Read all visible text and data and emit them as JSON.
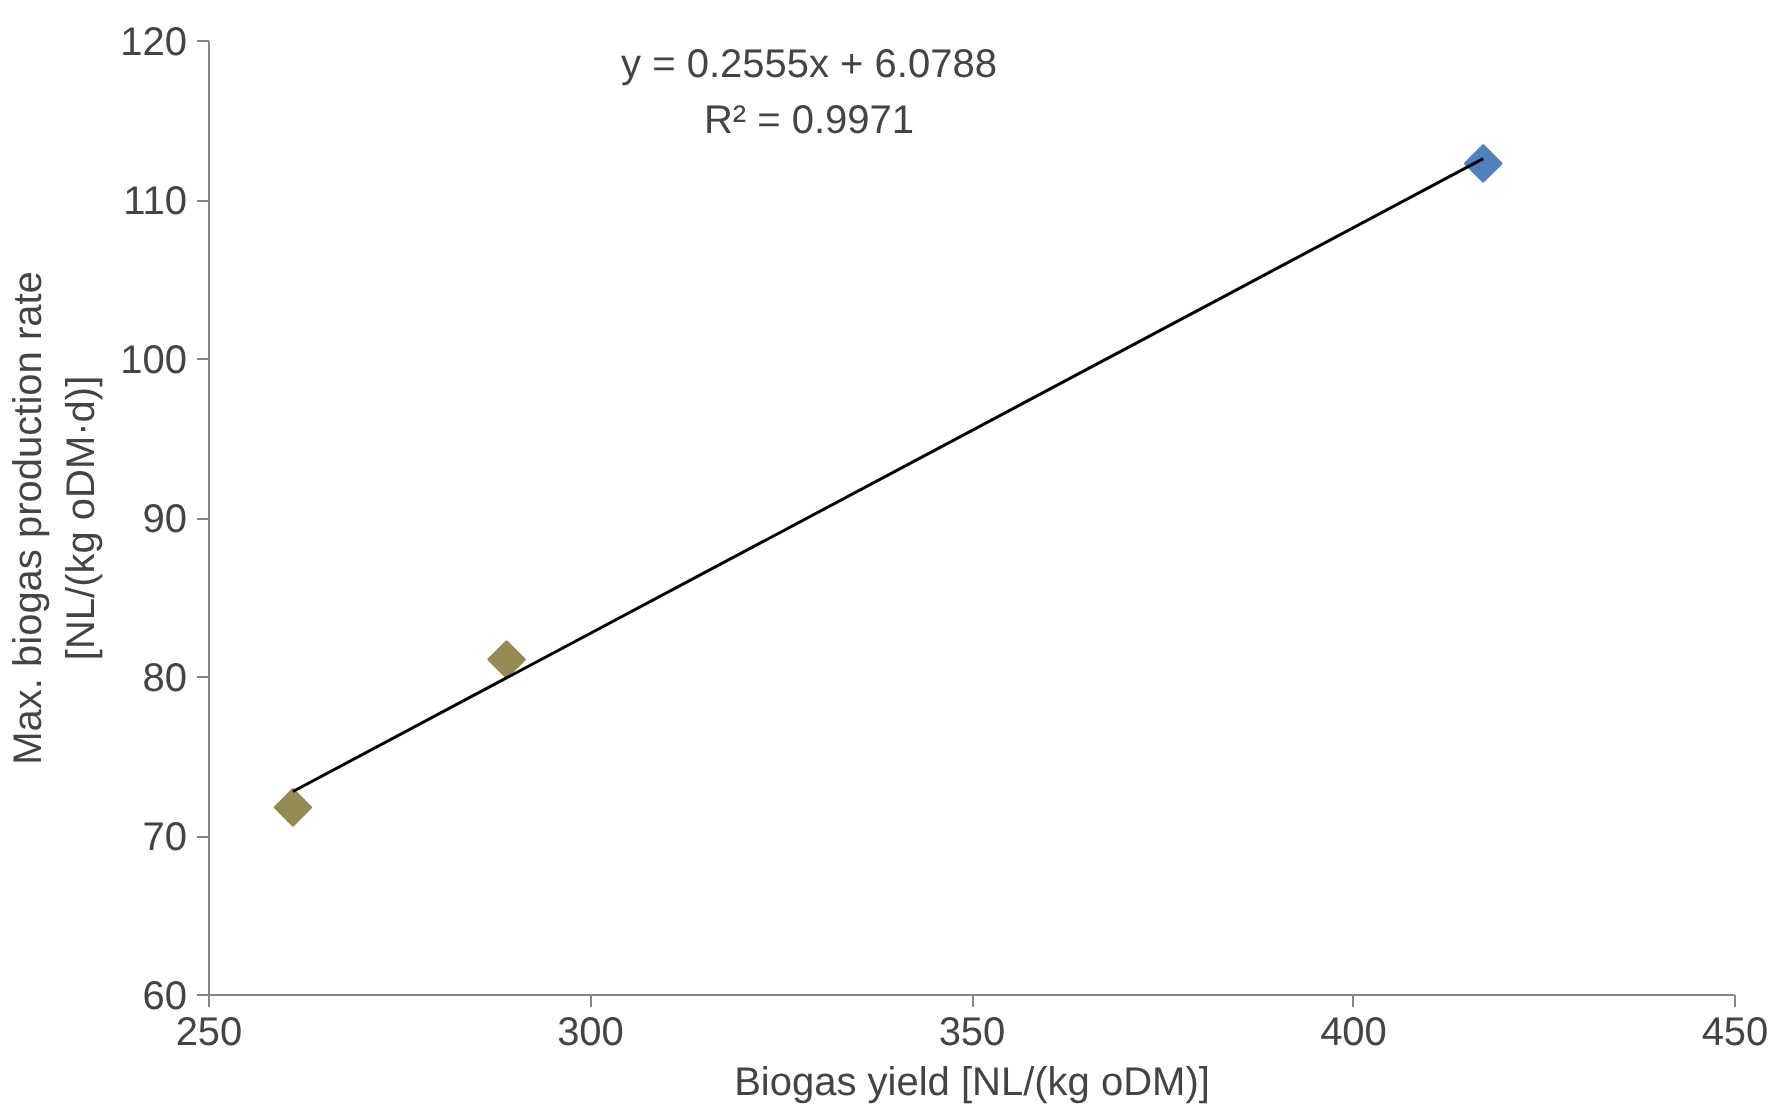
{
  "chart_data": {
    "type": "scatter",
    "xlabel": "Biogas yield [NL/(kg oDM)]",
    "ylabel": "Max. biogas production rate\n[NL/(kg oDM·d)]",
    "xlim": [
      250,
      450
    ],
    "xticks": [
      250,
      300,
      350,
      400,
      450
    ],
    "ylim": [
      60,
      120
    ],
    "yticks": [
      60,
      70,
      80,
      90,
      100,
      110,
      120
    ],
    "grid": false,
    "series": [
      {
        "x": [
          261,
          289,
          417
        ],
        "values": [
          71.8,
          81.1,
          112.3
        ],
        "colors": [
          "#948a54",
          "#948a54",
          "#4f81bd"
        ],
        "marker": "diamond"
      },
      {
        "type": "line",
        "x": [
          261,
          417
        ],
        "values": [
          72.8,
          112.6
        ],
        "color": "#000000",
        "line_style": "solid"
      }
    ],
    "annotations": [
      "y = 0.2555x + 6.0788",
      "R² = 0.9971"
    ]
  }
}
